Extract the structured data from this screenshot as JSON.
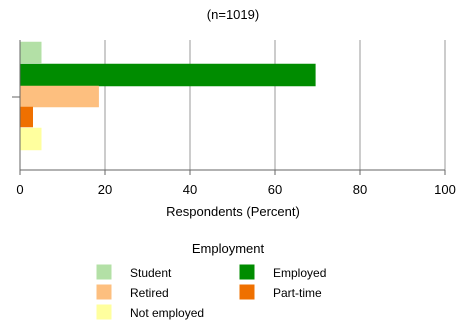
{
  "chart_data": {
    "type": "bar",
    "orientation": "horizontal",
    "title": "(n=1019)",
    "xlabel": "Respondents (Percent)",
    "xlim": [
      0,
      100
    ],
    "xticks": [
      0,
      20,
      40,
      60,
      80,
      100
    ],
    "grid": true,
    "legend_title": "Employment",
    "legend_position": "bottom",
    "series": [
      {
        "name": "Student",
        "value": 5,
        "color": "#b3e0a6"
      },
      {
        "name": "Employed",
        "value": 69.5,
        "color": "#008c00"
      },
      {
        "name": "Retired",
        "value": 18.5,
        "color": "#fdbf7f"
      },
      {
        "name": "Part-time",
        "value": 3,
        "color": "#ef7000"
      },
      {
        "name": "Not employed",
        "value": 5,
        "color": "#ffff9e"
      }
    ],
    "legend_order": [
      "Student",
      "Employed",
      "Retired",
      "Part-time",
      "Not employed"
    ]
  }
}
